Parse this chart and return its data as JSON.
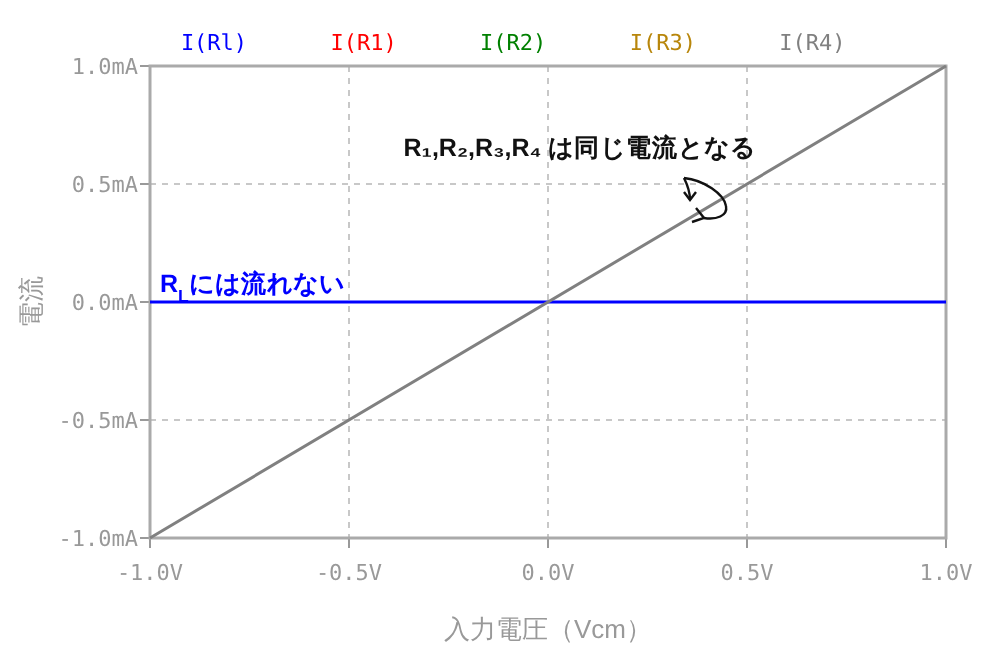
{
  "chart_data": {
    "type": "line",
    "xlabel": "入力電圧（Vcm）",
    "ylabel": "電流",
    "x": [
      -1,
      1
    ],
    "series": [
      {
        "name": "I(Rl)",
        "color": "#0000ff",
        "values": [
          0,
          0
        ]
      },
      {
        "name": "I(R1)",
        "color": "#ff0000",
        "values": [
          null,
          null
        ]
      },
      {
        "name": "I(R2)",
        "color": "#008000",
        "values": [
          null,
          null
        ]
      },
      {
        "name": "I(R3)",
        "color": "#b8860b",
        "values": [
          null,
          null
        ]
      },
      {
        "name": "I(R4)",
        "color": "#808080",
        "values": [
          -1,
          1
        ]
      }
    ],
    "xlim": [
      -1,
      1
    ],
    "xticks": [
      {
        "value": -1,
        "label": "-1.0V"
      },
      {
        "value": -0.5,
        "label": "-0.5V"
      },
      {
        "value": 0,
        "label": "0.0V"
      },
      {
        "value": 0.5,
        "label": "0.5V"
      },
      {
        "value": 1,
        "label": "1.0V"
      }
    ],
    "ylim": [
      -1,
      1
    ],
    "yticks": [
      {
        "value": -1,
        "label": "-1.0mA"
      },
      {
        "value": -0.5,
        "label": "-0.5mA"
      },
      {
        "value": 0,
        "label": "0.0mA"
      },
      {
        "value": 0.5,
        "label": "0.5mA"
      },
      {
        "value": 1,
        "label": "1.0mA"
      }
    ],
    "grid": true,
    "legend": "top",
    "line_style": "solid",
    "annotations": [
      "R₁,R₂,R₃,R₄ は同じ電流となる",
      "R$_{L}$には流れない"
    ]
  }
}
